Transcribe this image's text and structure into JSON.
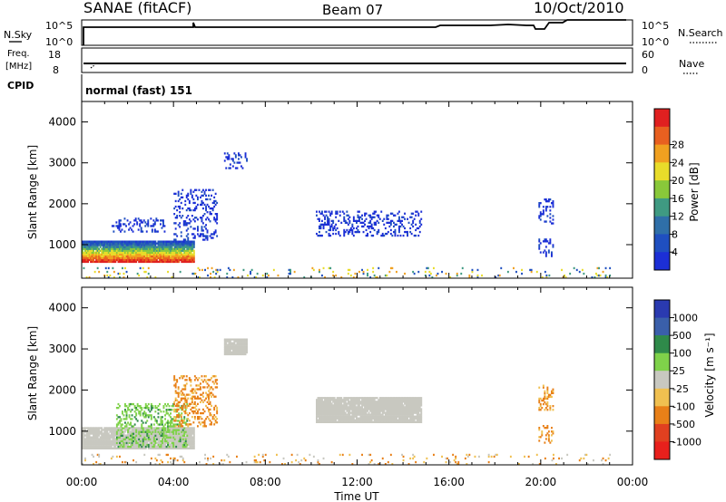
{
  "header": {
    "station": "SANAE (fitACF)",
    "beam": "Beam 07",
    "date": "10/Oct/2010"
  },
  "summary": {
    "nsky_label": "N.Sky",
    "nsearch_label": "N.Search",
    "noise_ticks": [
      "10^5",
      "10^0"
    ],
    "freq_label_1": "Freq.",
    "freq_label_2": "[MHz]",
    "freq_ticks": [
      "18",
      "8"
    ],
    "nave_label": "Nave",
    "nave_ticks": [
      "60",
      "0"
    ],
    "cpid_label": "CPID",
    "cpid_text": "normal (fast) 151"
  },
  "colors": {
    "power": [
      "#1c2fd6",
      "#1f4fc0",
      "#2f6fa8",
      "#3f9a82",
      "#89c83a",
      "#e8dc2a",
      "#f0a020",
      "#e86020",
      "#e02020"
    ],
    "velocity": [
      "#e8201c",
      "#e04020",
      "#e88018",
      "#f0c050",
      "#c8c8c0",
      "#7fd24a",
      "#2f8a4a",
      "#3a5faa",
      "#2a3ab0"
    ]
  },
  "chart_data": [
    {
      "type": "heatmap",
      "name": "power",
      "xlabel": "Time UT",
      "ylabel": "Slant Range [km]",
      "xlim": [
        0,
        24
      ],
      "ylim": [
        180,
        4500
      ],
      "x_ticks": [
        "00:00",
        "04:00",
        "08:00",
        "12:00",
        "16:00",
        "20:00",
        "00:00"
      ],
      "y_ticks": [
        "1000",
        "2000",
        "3000",
        "4000"
      ],
      "colorbar_label": "Power [dB]",
      "colorbar_ticks": [
        "4",
        "8",
        "12",
        "16",
        "20",
        "24",
        "28"
      ],
      "echo_regions": [
        {
          "t0": 0.0,
          "t1": 4.9,
          "r0": 560,
          "r1": 1100,
          "level": "high"
        },
        {
          "t0": 1.3,
          "t1": 3.6,
          "r0": 1300,
          "r1": 1650,
          "level": "low"
        },
        {
          "t0": 4.0,
          "t1": 5.9,
          "r0": 1100,
          "r1": 2350,
          "level": "low"
        },
        {
          "t0": 6.2,
          "t1": 7.2,
          "r0": 2850,
          "r1": 3250,
          "level": "low"
        },
        {
          "t0": 10.2,
          "t1": 14.8,
          "r0": 1200,
          "r1": 1800,
          "level": "low"
        },
        {
          "t0": 19.9,
          "t1": 20.5,
          "r0": 1500,
          "r1": 2100,
          "level": "low"
        },
        {
          "t0": 19.9,
          "t1": 20.5,
          "r0": 700,
          "r1": 1150,
          "level": "low"
        },
        {
          "t0": 0.0,
          "t1": 23.0,
          "r0": 180,
          "r1": 450,
          "level": "scatter"
        }
      ]
    },
    {
      "type": "heatmap",
      "name": "velocity",
      "xlabel": "Time UT",
      "ylabel": "Slant Range [km]",
      "xlim": [
        0,
        24
      ],
      "ylim": [
        180,
        4500
      ],
      "x_ticks": [
        "00:00",
        "04:00",
        "08:00",
        "12:00",
        "16:00",
        "20:00",
        "00:00"
      ],
      "y_ticks": [
        "1000",
        "2000",
        "3000",
        "4000"
      ],
      "colorbar_label": "Velocity [m s⁻¹]",
      "colorbar_ticks": [
        "1000",
        "500",
        "100",
        "25",
        "-25",
        "-100",
        "-500",
        "-1000"
      ],
      "echo_regions": [
        {
          "t0": 0.0,
          "t1": 4.9,
          "r0": 560,
          "r1": 1100,
          "level": "ground"
        },
        {
          "t0": 1.5,
          "t1": 4.6,
          "r0": 600,
          "r1": 1650,
          "level": "positive"
        },
        {
          "t0": 4.0,
          "t1": 5.9,
          "r0": 1100,
          "r1": 2350,
          "level": "negative"
        },
        {
          "t0": 6.2,
          "t1": 7.2,
          "r0": 2850,
          "r1": 3250,
          "level": "ground"
        },
        {
          "t0": 10.2,
          "t1": 14.8,
          "r0": 1200,
          "r1": 1800,
          "level": "ground"
        },
        {
          "t0": 19.9,
          "t1": 20.5,
          "r0": 1500,
          "r1": 2100,
          "level": "negative"
        },
        {
          "t0": 19.9,
          "t1": 20.5,
          "r0": 700,
          "r1": 1150,
          "level": "negative"
        },
        {
          "t0": 0.0,
          "t1": 23.0,
          "r0": 180,
          "r1": 450,
          "level": "scatter"
        }
      ]
    }
  ]
}
